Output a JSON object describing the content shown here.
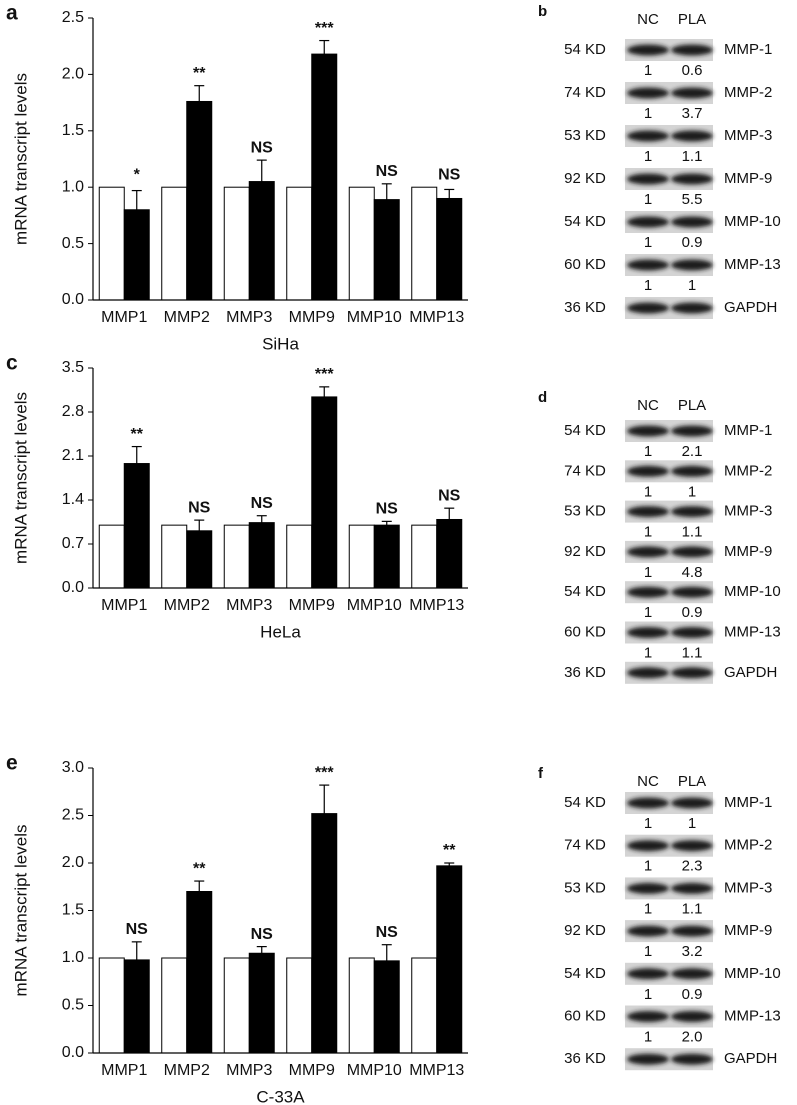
{
  "chart_data": [
    {
      "type": "bar",
      "panel": "a",
      "ylabel": "mRNA transcript levels",
      "xlabel": "SiHa",
      "categories": [
        "MMP1",
        "MMP2",
        "MMP3",
        "MMP9",
        "MMP10",
        "MMP13"
      ],
      "series": [
        {
          "color": "#ffffff",
          "values": [
            1,
            1,
            1,
            1,
            1,
            1
          ]
        },
        {
          "color": "#000000",
          "values": [
            0.8,
            1.76,
            1.05,
            2.18,
            0.89,
            0.9
          ],
          "errors": [
            0.17,
            0.14,
            0.19,
            0.12,
            0.14,
            0.08
          ]
        }
      ],
      "annotations": [
        "*",
        "**",
        "NS",
        "***",
        "NS",
        "NS"
      ],
      "ylim": [
        0,
        2.5
      ],
      "yticks": [
        {
          "value": 0,
          "label": "0.0"
        },
        0.5,
        {
          "value": 1,
          "label": "1.0"
        },
        1.5,
        {
          "value": 2,
          "label": "2.0"
        },
        2.5
      ]
    },
    {
      "type": "bar",
      "panel": "c",
      "ylabel": "mRNA transcript levels",
      "xlabel": "HeLa",
      "categories": [
        "MMP1",
        "MMP2",
        "MMP3",
        "MMP9",
        "MMP10",
        "MMP13"
      ],
      "series": [
        {
          "color": "#ffffff",
          "values": [
            1,
            1,
            1,
            1,
            1,
            1
          ]
        },
        {
          "color": "#000000",
          "values": [
            1.98,
            0.91,
            1.04,
            3.04,
            1.0,
            1.09
          ],
          "errors": [
            0.27,
            0.17,
            0.11,
            0.16,
            0.06,
            0.18
          ]
        }
      ],
      "annotations": [
        "**",
        "NS",
        "NS",
        "***",
        "NS",
        "NS"
      ],
      "ylim": [
        0,
        3.5
      ],
      "yticks": [
        {
          "value": 0,
          "label": "0.0"
        },
        0.7,
        1.4,
        2.1,
        2.8,
        3.5
      ]
    },
    {
      "type": "bar",
      "panel": "e",
      "ylabel": "mRNA transcript levels",
      "xlabel": "C-33A",
      "categories": [
        "MMP1",
        "MMP2",
        "MMP3",
        "MMP9",
        "MMP10",
        "MMP13"
      ],
      "series": [
        {
          "color": "#ffffff",
          "values": [
            1,
            1,
            1,
            1,
            1,
            1
          ]
        },
        {
          "color": "#000000",
          "values": [
            0.98,
            1.7,
            1.05,
            2.52,
            0.97,
            1.97
          ],
          "errors": [
            0.19,
            0.11,
            0.07,
            0.3,
            0.17,
            0.03
          ]
        }
      ],
      "annotations": [
        "NS",
        "**",
        "NS",
        "***",
        "NS",
        "**"
      ],
      "ylim": [
        0,
        3.0
      ],
      "yticks": [
        {
          "value": 0,
          "label": "0.0"
        },
        0.5,
        {
          "value": 1,
          "label": "1.0"
        },
        1.5,
        {
          "value": 2,
          "label": "2.0"
        },
        2.5,
        {
          "value": 3,
          "label": "3.0"
        }
      ]
    }
  ],
  "blots": [
    {
      "panel": "b",
      "columns": [
        "NC",
        "PLA"
      ],
      "rows": [
        {
          "size": "54 KD",
          "protein": "MMP-1",
          "ratios": [
            "1",
            "0.6"
          ]
        },
        {
          "size": "74 KD",
          "protein": "MMP-2",
          "ratios": [
            "1",
            "3.7"
          ]
        },
        {
          "size": "53 KD",
          "protein": "MMP-3",
          "ratios": [
            "1",
            "1.1"
          ]
        },
        {
          "size": "92 KD",
          "protein": "MMP-9",
          "ratios": [
            "1",
            "5.5"
          ]
        },
        {
          "size": "54 KD",
          "protein": "MMP-10",
          "ratios": [
            "1",
            "0.9"
          ]
        },
        {
          "size": "60 KD",
          "protein": "MMP-13",
          "ratios": [
            "1",
            "1"
          ]
        },
        {
          "size": "36 KD",
          "protein": "GAPDH"
        }
      ]
    },
    {
      "panel": "d",
      "columns": [
        "NC",
        "PLA"
      ],
      "rows": [
        {
          "size": "54 KD",
          "protein": "MMP-1",
          "ratios": [
            "1",
            "2.1"
          ]
        },
        {
          "size": "74 KD",
          "protein": "MMP-2",
          "ratios": [
            "1",
            "1"
          ]
        },
        {
          "size": "53 KD",
          "protein": "MMP-3",
          "ratios": [
            "1",
            "1.1"
          ]
        },
        {
          "size": "92 KD",
          "protein": "MMP-9",
          "ratios": [
            "1",
            "4.8"
          ]
        },
        {
          "size": "54 KD",
          "protein": "MMP-10",
          "ratios": [
            "1",
            "0.9"
          ]
        },
        {
          "size": "60 KD",
          "protein": "MMP-13",
          "ratios": [
            "1",
            "1.1"
          ]
        },
        {
          "size": "36 KD",
          "protein": "GAPDH"
        }
      ]
    },
    {
      "panel": "f",
      "columns": [
        "NC",
        "PLA"
      ],
      "rows": [
        {
          "size": "54 KD",
          "protein": "MMP-1",
          "ratios": [
            "1",
            "1"
          ]
        },
        {
          "size": "74 KD",
          "protein": "MMP-2",
          "ratios": [
            "1",
            "2.3"
          ]
        },
        {
          "size": "53 KD",
          "protein": "MMP-3",
          "ratios": [
            "1",
            "1.1"
          ]
        },
        {
          "size": "92 KD",
          "protein": "MMP-9",
          "ratios": [
            "1",
            "3.2"
          ]
        },
        {
          "size": "54 KD",
          "protein": "MMP-10",
          "ratios": [
            "1",
            "0.9"
          ]
        },
        {
          "size": "60 KD",
          "protein": "MMP-13",
          "ratios": [
            "1",
            "2.0"
          ]
        },
        {
          "size": "36 KD",
          "protein": "GAPDH"
        }
      ]
    }
  ]
}
